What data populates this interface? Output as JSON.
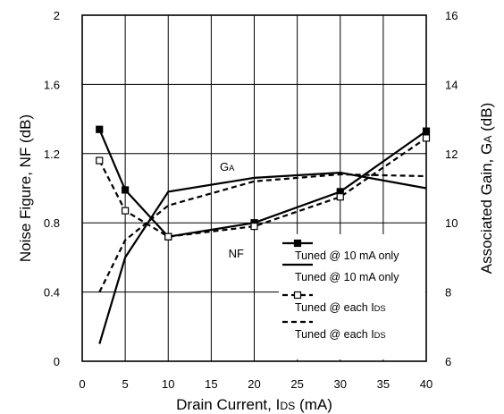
{
  "chart_data": {
    "type": "line",
    "xlabel": "Drain Current, IDS (mA)",
    "xlabel_parts": [
      "Drain Current, I",
      "DS",
      " (mA)"
    ],
    "ylabel": "Noise Figure, NF (dB)",
    "y2label": "Associated Gain, GA (dB)",
    "y2label_parts": [
      "Associated Gain, G",
      "A",
      " (dB)"
    ],
    "xlim": [
      0,
      40
    ],
    "ylim": [
      0,
      2
    ],
    "y2lim": [
      6,
      16
    ],
    "x_ticks": [
      0,
      5,
      10,
      15,
      20,
      25,
      30,
      35,
      40
    ],
    "y_ticks": [
      0,
      0.4,
      0.8,
      1.2,
      1.6,
      2
    ],
    "y_tick_labels": [
      "0",
      "0.4",
      "0.8",
      "1.2",
      "1.6",
      "2"
    ],
    "y2_ticks": [
      6,
      8,
      10,
      12,
      14,
      16
    ],
    "y2_tick_labels": [
      "6",
      "8",
      "10",
      "12",
      "14",
      "16"
    ],
    "grid": true,
    "legend_position": "bottom-right",
    "annotations": [
      {
        "text": "G",
        "sub": "A",
        "x": 16,
        "y": 1.1
      },
      {
        "text": "NF",
        "sub": "",
        "x": 17,
        "y": 0.6
      }
    ],
    "series": [
      {
        "name": "Tuned @ 10 mA only",
        "name_parts": [
          "Tuned @ 10 mA only",
          ""
        ],
        "quantity": "NF",
        "axis": "left",
        "style": "solid",
        "marker": "filled-square",
        "x": [
          2,
          5,
          10,
          20,
          30,
          40
        ],
        "y": [
          1.34,
          0.99,
          0.72,
          0.8,
          0.98,
          1.33
        ]
      },
      {
        "name": "Tuned @ 10 mA only",
        "name_parts": [
          "Tuned @ 10 mA only",
          ""
        ],
        "quantity": "GA",
        "axis": "right",
        "style": "solid",
        "marker": "none",
        "x": [
          2,
          5,
          10,
          20,
          30,
          40
        ],
        "y": [
          6.5,
          9.0,
          10.9,
          11.3,
          11.45,
          11.0
        ]
      },
      {
        "name": "Tuned @ each IDS",
        "name_parts": [
          "Tuned @ each I",
          "DS"
        ],
        "quantity": "NF",
        "axis": "left",
        "style": "dashed",
        "marker": "open-square",
        "x": [
          2,
          5,
          10,
          20,
          30,
          40
        ],
        "y": [
          1.16,
          0.87,
          0.72,
          0.78,
          0.95,
          1.29
        ]
      },
      {
        "name": "Tuned @ each IDS",
        "name_parts": [
          "Tuned @ each I",
          "DS"
        ],
        "quantity": "GA",
        "axis": "right",
        "style": "dashed",
        "marker": "none",
        "x": [
          2,
          5,
          10,
          20,
          30,
          40
        ],
        "y": [
          8.0,
          9.5,
          10.5,
          11.2,
          11.4,
          11.35
        ]
      }
    ]
  }
}
